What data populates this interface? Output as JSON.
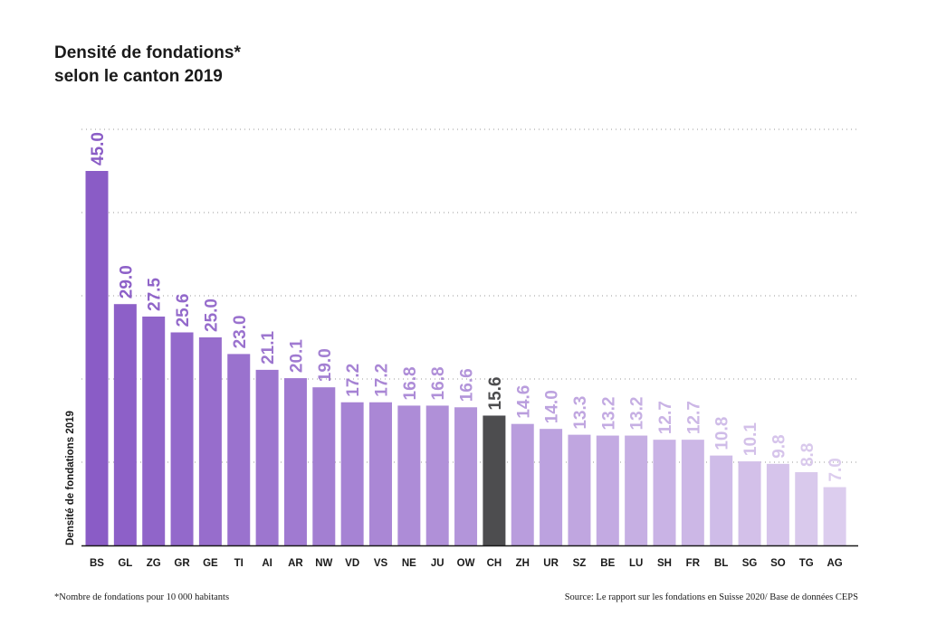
{
  "title_line1": "Densité de fondations*",
  "title_line2": "selon le canton 2019",
  "footnote": "*Nombre de fondations pour 10 000 habitants",
  "source": "Source: Le rapport sur les fondations en Suisse 2020/ Base de données CEPS",
  "colors": {
    "highlight": "#4d4d4f",
    "gradient_start": "#8a5cc6",
    "gradient_end": "#dccdee",
    "grid": "#9a9a9a",
    "axis": "#1a1a1a"
  },
  "chart_data": {
    "type": "bar",
    "title": "Densité de fondations* selon le canton 2019",
    "xlabel": "",
    "ylabel": "Densité de fondations 2019",
    "ylim": [
      0,
      50
    ],
    "grid": true,
    "highlight_category": "CH",
    "categories": [
      "BS",
      "GL",
      "ZG",
      "GR",
      "GE",
      "TI",
      "AI",
      "AR",
      "NW",
      "VD",
      "VS",
      "NE",
      "JU",
      "OW",
      "CH",
      "ZH",
      "UR",
      "SZ",
      "BE",
      "LU",
      "SH",
      "FR",
      "BL",
      "SG",
      "SO",
      "TG",
      "AG"
    ],
    "values": [
      45.0,
      29.0,
      27.5,
      25.6,
      25.0,
      23.0,
      21.1,
      20.1,
      19.0,
      17.2,
      17.2,
      16.8,
      16.8,
      16.6,
      15.6,
      14.6,
      14.0,
      13.3,
      13.2,
      13.2,
      12.7,
      12.7,
      10.8,
      10.1,
      9.8,
      8.8,
      7.0
    ],
    "value_labels": [
      "45.0",
      "29.0",
      "27.5",
      "25.6",
      "25.0",
      "23.0",
      "21.1",
      "20.1",
      "19.0",
      "17.2",
      "17.2",
      "16.8",
      "16.8",
      "16.6",
      "15.6",
      "14.6",
      "14.0",
      "13.3",
      "13.2",
      "13.2",
      "12.7",
      "12.7",
      "10.8",
      "10.1",
      "9.8",
      "8.8",
      "7.0"
    ]
  }
}
